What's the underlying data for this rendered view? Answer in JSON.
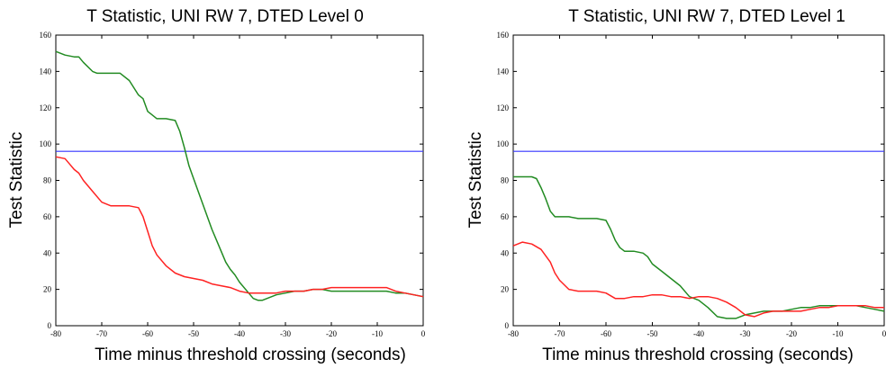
{
  "chart_data": [
    {
      "type": "line",
      "title": "T Statistic, UNI RW 7, DTED Level 0",
      "xlabel": "Time minus threshold crossing (seconds)",
      "ylabel": "Test Statistic",
      "xlim": [
        -80,
        0
      ],
      "ylim": [
        0,
        160
      ],
      "xticks": [
        "-80",
        "-70",
        "-60",
        "-50",
        "-40",
        "-30",
        "-20",
        "-10",
        "0"
      ],
      "yticks": [
        "0",
        "20",
        "40",
        "60",
        "80",
        "100",
        "120",
        "140",
        "160"
      ],
      "grid": false,
      "threshold": {
        "value": 96,
        "color": "#3333ff"
      },
      "series": [
        {
          "color": "#228b22",
          "x": [
            -80,
            -78,
            -76,
            -75,
            -74,
            -72,
            -71,
            -70,
            -68,
            -66,
            -64,
            -62,
            -61,
            -60,
            -59,
            -58,
            -56,
            -54,
            -53,
            -52,
            -51,
            -50,
            -48,
            -46,
            -45,
            -44,
            -43,
            -42,
            -41,
            -40,
            -38,
            -37,
            -36,
            -35,
            -34,
            -33,
            -32,
            -30,
            -28,
            -26,
            -24,
            -22,
            -20,
            -18,
            -16,
            -14,
            -12,
            -10,
            -8,
            -6,
            -4,
            -2,
            0
          ],
          "y": [
            151,
            149,
            148,
            148,
            145,
            140,
            139,
            139,
            139,
            139,
            135,
            127,
            125,
            118,
            116,
            114,
            114,
            113,
            107,
            98,
            88,
            81,
            67,
            53,
            47,
            41,
            35,
            31,
            28,
            24,
            18,
            15,
            14,
            14,
            15,
            16,
            17,
            18,
            19,
            19,
            20,
            20,
            19,
            19,
            19,
            19,
            19,
            19,
            19,
            18,
            18,
            17,
            16
          ]
        },
        {
          "color": "#ff2222",
          "x": [
            -80,
            -78,
            -77,
            -76,
            -75,
            -74,
            -72,
            -70,
            -68,
            -66,
            -64,
            -62,
            -61,
            -60,
            -59,
            -58,
            -56,
            -54,
            -52,
            -50,
            -48,
            -46,
            -44,
            -42,
            -40,
            -38,
            -36,
            -34,
            -32,
            -30,
            -28,
            -26,
            -24,
            -22,
            -20,
            -18,
            -16,
            -14,
            -12,
            -10,
            -8,
            -6,
            -4,
            -2,
            0
          ],
          "y": [
            93,
            92,
            89,
            86,
            84,
            80,
            74,
            68,
            66,
            66,
            66,
            65,
            60,
            52,
            44,
            39,
            33,
            29,
            27,
            26,
            25,
            23,
            22,
            21,
            19,
            18,
            18,
            18,
            18,
            19,
            19,
            19,
            20,
            20,
            21,
            21,
            21,
            21,
            21,
            21,
            21,
            19,
            18,
            17,
            16
          ]
        }
      ]
    },
    {
      "type": "line",
      "title": "T Statistic, UNI RW 7, DTED Level 1",
      "xlabel": "Time minus threshold crossing (seconds)",
      "ylabel": "Test Statistic",
      "xlim": [
        -80,
        0
      ],
      "ylim": [
        0,
        160
      ],
      "xticks": [
        "-80",
        "-70",
        "-60",
        "-50",
        "-40",
        "-30",
        "-20",
        "-10",
        "0"
      ],
      "yticks": [
        "0",
        "20",
        "40",
        "60",
        "80",
        "100",
        "120",
        "140",
        "160"
      ],
      "grid": false,
      "threshold": {
        "value": 96,
        "color": "#3333ff"
      },
      "series": [
        {
          "color": "#228b22",
          "x": [
            -80,
            -78,
            -76,
            -75,
            -74,
            -73,
            -72,
            -71,
            -70,
            -68,
            -66,
            -64,
            -62,
            -60,
            -59,
            -58,
            -57,
            -56,
            -54,
            -52,
            -51,
            -50,
            -48,
            -46,
            -44,
            -42,
            -40,
            -38,
            -36,
            -34,
            -32,
            -30,
            -28,
            -26,
            -24,
            -22,
            -20,
            -18,
            -16,
            -14,
            -12,
            -10,
            -8,
            -6,
            -4,
            -2,
            0
          ],
          "y": [
            82,
            82,
            82,
            81,
            76,
            70,
            63,
            60,
            60,
            60,
            59,
            59,
            59,
            58,
            53,
            47,
            43,
            41,
            41,
            40,
            38,
            34,
            30,
            26,
            22,
            16,
            14,
            10,
            5,
            4,
            4,
            6,
            7,
            8,
            8,
            8,
            9,
            10,
            10,
            11,
            11,
            11,
            11,
            11,
            10,
            9,
            8
          ]
        },
        {
          "color": "#ff2222",
          "x": [
            -80,
            -78,
            -76,
            -74,
            -72,
            -71,
            -70,
            -68,
            -66,
            -64,
            -62,
            -60,
            -58,
            -56,
            -54,
            -52,
            -50,
            -48,
            -46,
            -44,
            -42,
            -40,
            -38,
            -36,
            -34,
            -32,
            -30,
            -28,
            -26,
            -24,
            -22,
            -20,
            -18,
            -16,
            -14,
            -12,
            -10,
            -8,
            -6,
            -4,
            -2,
            0
          ],
          "y": [
            44,
            46,
            45,
            42,
            35,
            29,
            25,
            20,
            19,
            19,
            19,
            18,
            15,
            15,
            16,
            16,
            17,
            17,
            16,
            16,
            15,
            16,
            16,
            15,
            13,
            10,
            6,
            5,
            7,
            8,
            8,
            8,
            8,
            9,
            10,
            10,
            11,
            11,
            11,
            11,
            10,
            10
          ]
        }
      ]
    }
  ]
}
